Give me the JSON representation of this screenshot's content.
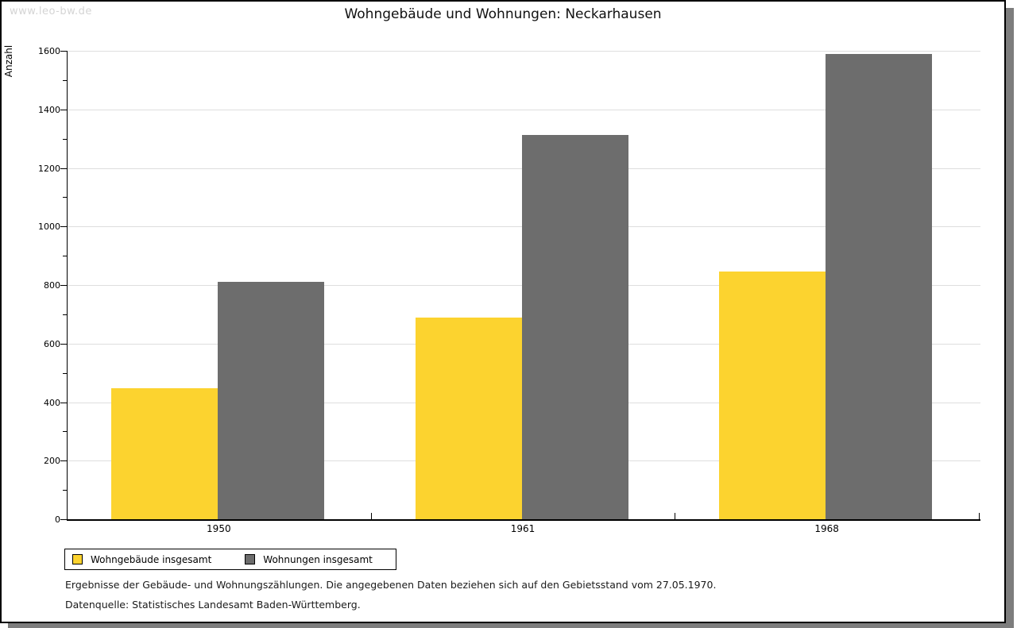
{
  "window": {
    "watermark": "www.leo-bw.de"
  },
  "chart_data": {
    "type": "bar",
    "title": "Wohngebäude und Wohnungen: Neckarhausen",
    "ylabel": "Anzahl",
    "xlabel": "",
    "categories": [
      "1950",
      "1961",
      "1968"
    ],
    "series": [
      {
        "name": "Wohngebäude insgesamt",
        "color": "#fcd32f",
        "values": [
          447,
          689,
          846
        ]
      },
      {
        "name": "Wohnungen insgesamt",
        "color": "#6d6d6d",
        "values": [
          811,
          1312,
          1589
        ]
      }
    ],
    "ylim": [
      0,
      1600
    ],
    "ytick_step": 200,
    "yminor_step": 100,
    "grid": "horizontal-major",
    "legend_position": "bottom-left"
  },
  "footnotes": {
    "line1": "Ergebnisse der Gebäude- und Wohnungszählungen. Die angegebenen Daten beziehen sich auf den Gebietsstand vom 27.05.1970.",
    "line2": "Datenquelle: Statistisches Landesamt Baden-Württemberg."
  }
}
